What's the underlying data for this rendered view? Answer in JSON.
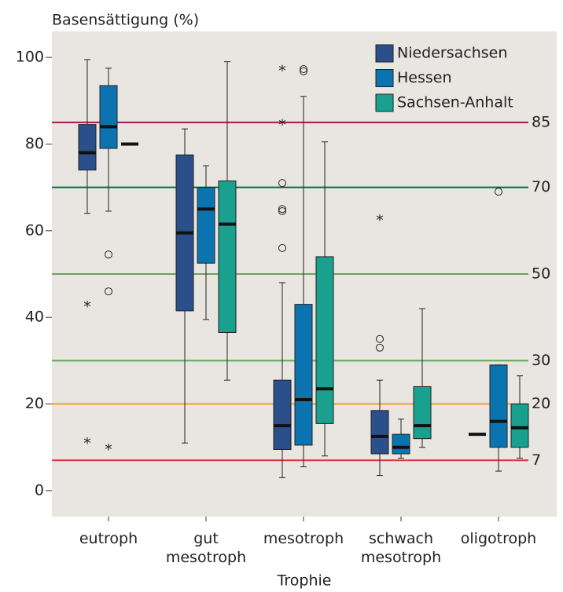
{
  "chart_data": {
    "type": "box",
    "y_label": "Basensättigung (%)",
    "x_label": "Trophie",
    "categories": [
      "eutroph",
      "gut mesotroph",
      "mesotroph",
      "schwach mesotroph",
      "oligotroph"
    ],
    "ylim": [
      -6,
      106
    ],
    "yticks": [
      0,
      20,
      40,
      60,
      80,
      100
    ],
    "reference_lines": [
      {
        "value": 85,
        "color": "#a3184a"
      },
      {
        "value": 70,
        "color": "#0a6b3a"
      },
      {
        "value": 50,
        "color": "#5fa85a"
      },
      {
        "value": 30,
        "color": "#5fa85a"
      },
      {
        "value": 20,
        "color": "#f0a030"
      },
      {
        "value": 7,
        "color": "#d63a3a"
      }
    ],
    "legend": "upper right",
    "series": [
      {
        "name": "Niedersachsen",
        "color": "#2a4f8a",
        "boxes": [
          {
            "whisker_low": 64,
            "q1": 74,
            "median": 78,
            "q3": 84.5,
            "whisker_high": 99.5,
            "outliers": [],
            "extremes": [
              43,
              11.5
            ]
          },
          {
            "whisker_low": 11,
            "q1": 41.5,
            "median": 59.5,
            "q3": 77.5,
            "whisker_high": 83.5,
            "outliers": [],
            "extremes": []
          },
          {
            "whisker_low": 3,
            "q1": 9.5,
            "median": 15,
            "q3": 25.5,
            "whisker_high": 48,
            "outliers": [
              71,
              65,
              64.5,
              56
            ],
            "extremes": [
              97.5,
              85
            ]
          },
          {
            "whisker_low": 3.5,
            "q1": 8.5,
            "median": 12.5,
            "q3": 18.5,
            "whisker_high": 25.5,
            "outliers": [
              35,
              33
            ],
            "extremes": [
              63
            ]
          },
          {
            "median": 13
          }
        ]
      },
      {
        "name": "Hessen",
        "color": "#0b74b0",
        "boxes": [
          {
            "whisker_low": 64.5,
            "q1": 79,
            "median": 84,
            "q3": 93.5,
            "whisker_high": 97.5,
            "outliers": [
              54.5,
              46
            ],
            "extremes": [
              10
            ]
          },
          {
            "whisker_low": 39.5,
            "q1": 52.5,
            "median": 65,
            "q3": 70,
            "whisker_high": 75,
            "outliers": [],
            "extremes": []
          },
          {
            "whisker_low": 5.5,
            "q1": 10.5,
            "median": 21,
            "q3": 43,
            "whisker_high": 91,
            "outliers": [
              97.3,
              96.8
            ],
            "extremes": []
          },
          {
            "whisker_low": 7.5,
            "q1": 8.5,
            "median": 10,
            "q3": 13,
            "whisker_high": 16.5,
            "outliers": [],
            "extremes": []
          },
          {
            "whisker_low": 4.5,
            "q1": 10,
            "median": 16,
            "q3": 29,
            "whisker_high": 29,
            "outliers": [
              69
            ],
            "extremes": []
          }
        ]
      },
      {
        "name": "Sachsen-Anhalt",
        "color": "#1aa08f",
        "boxes": [
          {
            "median": 80
          },
          {
            "whisker_low": 25.5,
            "q1": 36.5,
            "median": 61.5,
            "q3": 71.5,
            "whisker_high": 99,
            "outliers": [],
            "extremes": []
          },
          {
            "whisker_low": 8,
            "q1": 15.5,
            "median": 23.5,
            "q3": 54,
            "whisker_high": 80.5,
            "outliers": [],
            "extremes": []
          },
          {
            "whisker_low": 10,
            "q1": 12,
            "median": 15,
            "q3": 24,
            "whisker_high": 42,
            "outliers": [],
            "extremes": []
          },
          {
            "whisker_low": 7.5,
            "q1": 10,
            "median": 14.5,
            "q3": 20,
            "whisker_high": 26.5,
            "outliers": [],
            "extremes": []
          }
        ]
      }
    ]
  }
}
